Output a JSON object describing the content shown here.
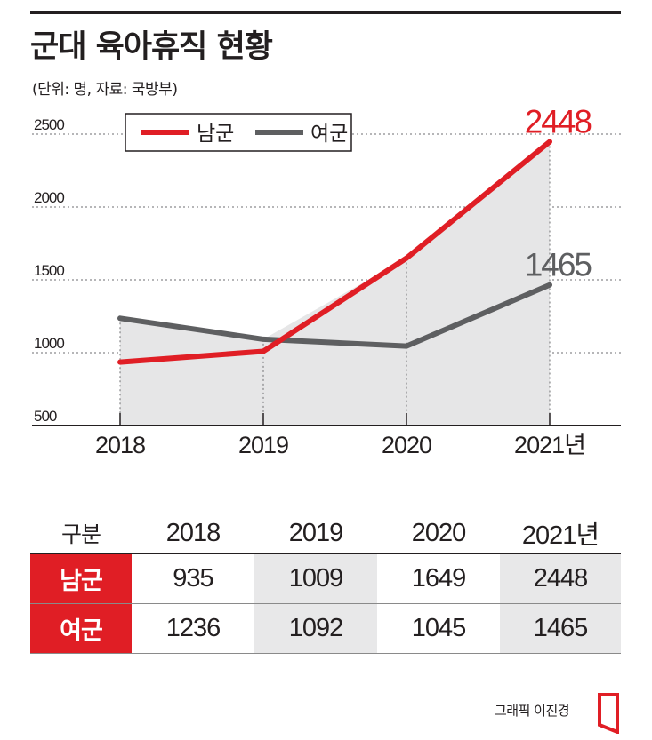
{
  "header": {
    "title": "군대 육아휴직 현황",
    "subtitle": "(단위: 명, 자료: 국방부)"
  },
  "chart_data": {
    "type": "line",
    "categories": [
      "2018",
      "2019",
      "2020",
      "2021년"
    ],
    "series": [
      {
        "name": "남군",
        "color": "#e01e25",
        "values": [
          935,
          1009,
          1649,
          2448
        ]
      },
      {
        "name": "여군",
        "color": "#5e5f61",
        "values": [
          1236,
          1092,
          1045,
          1465
        ]
      }
    ],
    "y_ticks": [
      "2500",
      "2000",
      "1500",
      "1000",
      "500"
    ],
    "ylim": [
      500,
      2500
    ],
    "end_labels": [
      "2448",
      "1465"
    ],
    "grid": "dotted horizontal",
    "legend": "top-left",
    "area_fill_color": "#e6e6e7"
  },
  "table": {
    "header": [
      "구분",
      "2018",
      "2019",
      "2020",
      "2021년"
    ],
    "rows": [
      {
        "label": "남군",
        "values": [
          "935",
          "1009",
          "1649",
          "2448"
        ]
      },
      {
        "label": "여군",
        "values": [
          "1236",
          "1092",
          "1045",
          "1465"
        ]
      }
    ]
  },
  "footer": {
    "credit": "그래픽 이진경"
  }
}
